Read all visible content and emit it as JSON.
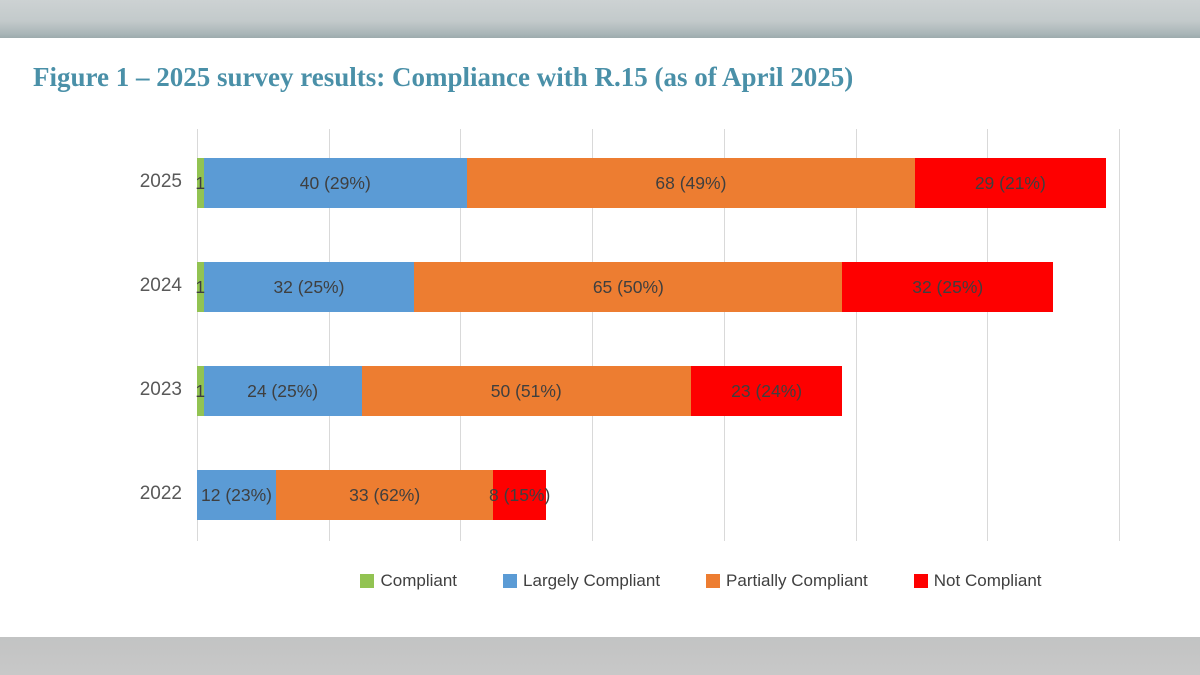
{
  "page": {
    "top_band_color": "#c3cacb",
    "bottom_band_color": "#c6c6c6",
    "background": "#ffffff"
  },
  "title": {
    "text": "Figure 1 – 2025 survey results: Compliance with R.15 (as of April 2025)",
    "color": "#4A90A8"
  },
  "chart_data": {
    "type": "bar",
    "variant": "horizontal-stacked",
    "categories": [
      "2025",
      "2024",
      "2023",
      "2022"
    ],
    "series": [
      {
        "name": "Compliant",
        "color": "#92C352",
        "values": [
          1,
          1,
          1,
          0
        ],
        "data_labels": [
          "1",
          "1",
          "1",
          ""
        ]
      },
      {
        "name": "Largely Compliant",
        "color": "#5B9BD5",
        "values": [
          40,
          32,
          24,
          12
        ],
        "data_labels": [
          "40 (29%)",
          "32 (25%)",
          "24 (25%)",
          "12 (23%)"
        ]
      },
      {
        "name": "Partially Compliant",
        "color": "#ED7D31",
        "values": [
          68,
          65,
          50,
          33
        ],
        "data_labels": [
          "68 (49%)",
          "65 (50%)",
          "50 (51%)",
          "33 (62%)"
        ]
      },
      {
        "name": "Not Compliant",
        "color": "#FE0000",
        "values": [
          29,
          32,
          23,
          8
        ],
        "data_labels": [
          "29 (21%)",
          "32 (25%)",
          "23 (24%)",
          "8 (15%)"
        ]
      }
    ],
    "totals": [
      138,
      130,
      98,
      53
    ],
    "x_axis": {
      "min": 0,
      "max": 140,
      "gridline_interval": 20,
      "gridlines_visible": true,
      "tick_labels_visible": false
    },
    "legend": {
      "position": "bottom",
      "entries": [
        "Compliant",
        "Largely Compliant",
        "Partially Compliant",
        "Not Compliant"
      ]
    },
    "gridline_color": "#d9d9d9",
    "data_label_color": "#3F3F3F",
    "category_label_color": "#595959"
  }
}
